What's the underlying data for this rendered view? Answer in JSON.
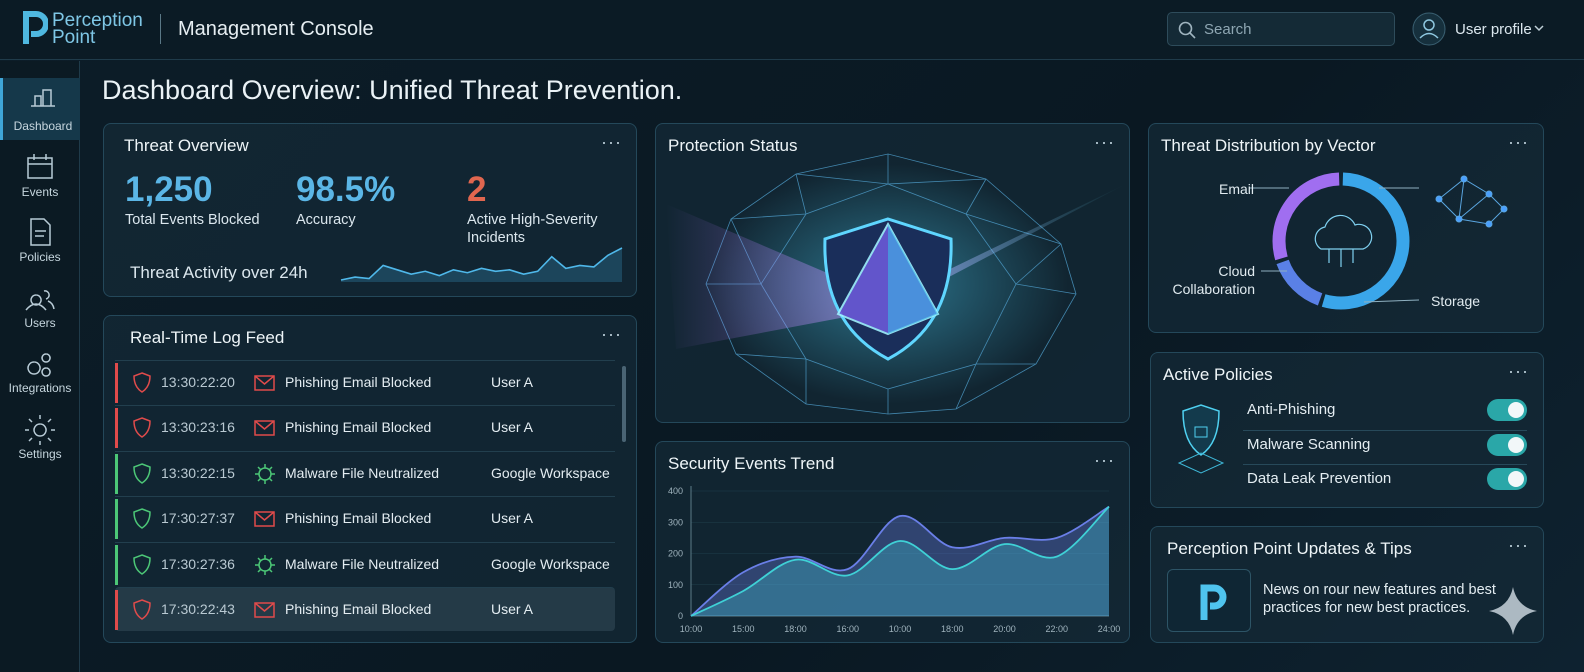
{
  "header": {
    "brand_line1": "Perception",
    "brand_line2": "Point",
    "console": "Management Console",
    "search": "Search",
    "user": "User profile"
  },
  "nav": [
    "Dashboard",
    "Events",
    "Policies",
    "Users",
    "Integrations",
    "Settings"
  ],
  "page_title": "Dashboard Overview: Unified Threat Prevention.",
  "threat_overview": {
    "title": "Threat Overview",
    "stats": [
      {
        "value": "1,250",
        "label": "Total Events Blocked",
        "color": "#5bb6e6"
      },
      {
        "value": "98.5%",
        "label": "Accuracy",
        "color": "#5bb6e6"
      },
      {
        "value": "2",
        "label": "Active High-Severity Incidents",
        "color": "#e0664f"
      }
    ],
    "activity_label": "Threat Activity over 24h",
    "activity": [
      2,
      4,
      3,
      12,
      9,
      6,
      8,
      5,
      9,
      7,
      10,
      8,
      9,
      6,
      8,
      18,
      10,
      12,
      11,
      19,
      24
    ]
  },
  "protection_status": {
    "title": "Protection Status"
  },
  "log_feed": {
    "title": "Real-Time Log Feed",
    "rows": [
      {
        "time": "13:30:22:20",
        "event": "Phishing Email Blocked",
        "user": "User A",
        "color": "#e04b4b",
        "icon": "envelope"
      },
      {
        "time": "13:30:23:16",
        "event": "Phishing Email Blocked",
        "user": "User A",
        "color": "#e04b4b",
        "icon": "envelope"
      },
      {
        "time": "13:30:22:15",
        "event": "Malware File Neutralized",
        "user": "Google Workspace",
        "color": "#4cc777",
        "icon": "virus"
      },
      {
        "time": "17:30:27:37",
        "event": "Phishing Email Blocked",
        "user": "User A",
        "color": "#4cc777",
        "icon": "envelope"
      },
      {
        "time": "17:30:27:36",
        "event": "Malware File Neutralized",
        "user": "Google Workspace",
        "color": "#4cc777",
        "icon": "virus"
      },
      {
        "time": "17:30:22:43",
        "event": "Phishing Email Blocked",
        "user": "User A",
        "color": "#e04b4b",
        "icon": "envelope"
      }
    ]
  },
  "chart_data": {
    "type": "line",
    "title": "Security Events Trend",
    "categories": [
      "10:00",
      "15:00",
      "18:00",
      "16:00",
      "10:00",
      "18:00",
      "20:00",
      "22:00",
      "24:00"
    ],
    "series": [
      {
        "color": "#6a7fe8",
        "values": [
          0,
          140,
          190,
          150,
          320,
          220,
          250,
          250,
          350
        ]
      },
      {
        "color": "#3fd1d6",
        "values": [
          0,
          80,
          180,
          130,
          240,
          150,
          230,
          190,
          350
        ]
      }
    ],
    "ylim": [
      0,
      400
    ],
    "yticks": [
      0,
      100,
      200,
      300,
      400
    ]
  },
  "threat_distribution": {
    "title": "Threat Distribution by Vector",
    "type": "pie",
    "segments": [
      {
        "name": "Storage",
        "value": 55,
        "color": "#3aa6ea"
      },
      {
        "name": "Cloud Collaboration",
        "value": 15,
        "color": "#5a80e6"
      },
      {
        "name": "Email",
        "value": 30,
        "color": "#a06ef0"
      }
    ]
  },
  "policies": {
    "title": "Active Policies",
    "items": [
      {
        "name": "Anti-Phishing",
        "enabled": true
      },
      {
        "name": "Malware Scanning",
        "enabled": true
      },
      {
        "name": "Data Leak Prevention",
        "enabled": true
      }
    ]
  },
  "updates": {
    "title": "Perception Point Updates & Tips",
    "text": "News on rour new features and best practices for new best practices."
  }
}
